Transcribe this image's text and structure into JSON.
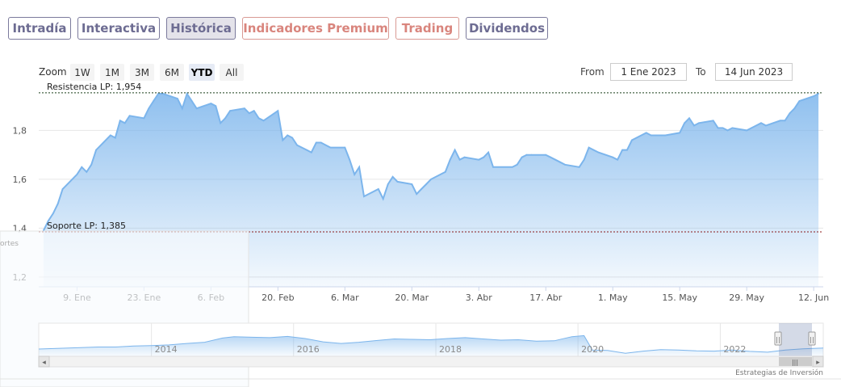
{
  "tabs": [
    {
      "label": "Intradía",
      "premium": false,
      "active": false
    },
    {
      "label": "Interactiva",
      "premium": false,
      "active": false
    },
    {
      "label": "Histórica",
      "premium": false,
      "active": true
    },
    {
      "label": "Indicadores Premium",
      "premium": true,
      "active": false
    },
    {
      "label": "Trading",
      "premium": true,
      "active": false
    },
    {
      "label": "Dividendos",
      "premium": false,
      "active": false
    }
  ],
  "zoom": {
    "label": "Zoom",
    "buttons": [
      "1W",
      "1M",
      "3M",
      "6M",
      "YTD",
      "All"
    ],
    "selected": "YTD"
  },
  "range": {
    "from_label": "From",
    "from_value": "1 Ene 2023",
    "to_label": "To",
    "to_value": "14 Jun 2023"
  },
  "colors": {
    "series": "#7cb5ec",
    "resistance": "#1a3d1a",
    "support": "#8b1a1a",
    "tab_border": "#7b7a9c",
    "tab_premium": "#d9857d"
  },
  "chart_data": {
    "type": "area",
    "title": "",
    "xlabel": "",
    "ylabel": "",
    "ylim": [
      1.16,
      1.97
    ],
    "yticks": [
      "1,2",
      "1,4",
      "1,6",
      "1,8"
    ],
    "xticks": [
      "9. Ene",
      "23. Ene",
      "6. Feb",
      "20. Feb",
      "6. Mar",
      "20. Mar",
      "3. Abr",
      "17. Abr",
      "1. May",
      "15. May",
      "29. May",
      "12. Jun"
    ],
    "x_range": [
      "2023-01-01",
      "2023-06-14"
    ],
    "grid": true,
    "series": [
      {
        "values": [
          [
            "2023-01-02",
            1.39
          ],
          [
            "2023-01-03",
            1.43
          ],
          [
            "2023-01-04",
            1.46
          ],
          [
            "2023-01-05",
            1.5
          ],
          [
            "2023-01-06",
            1.56
          ],
          [
            "2023-01-09",
            1.62
          ],
          [
            "2023-01-10",
            1.65
          ],
          [
            "2023-01-11",
            1.63
          ],
          [
            "2023-01-12",
            1.66
          ],
          [
            "2023-01-13",
            1.72
          ],
          [
            "2023-01-16",
            1.78
          ],
          [
            "2023-01-17",
            1.77
          ],
          [
            "2023-01-18",
            1.84
          ],
          [
            "2023-01-19",
            1.83
          ],
          [
            "2023-01-20",
            1.86
          ],
          [
            "2023-01-23",
            1.85
          ],
          [
            "2023-01-24",
            1.89
          ],
          [
            "2023-01-25",
            1.92
          ],
          [
            "2023-01-26",
            1.95
          ],
          [
            "2023-01-27",
            1.95
          ],
          [
            "2023-01-30",
            1.93
          ],
          [
            "2023-01-31",
            1.89
          ],
          [
            "2023-02-01",
            1.95
          ],
          [
            "2023-02-02",
            1.92
          ],
          [
            "2023-02-03",
            1.89
          ],
          [
            "2023-02-06",
            1.91
          ],
          [
            "2023-02-07",
            1.9
          ],
          [
            "2023-02-08",
            1.83
          ],
          [
            "2023-02-09",
            1.85
          ],
          [
            "2023-02-10",
            1.88
          ],
          [
            "2023-02-13",
            1.89
          ],
          [
            "2023-02-14",
            1.87
          ],
          [
            "2023-02-15",
            1.88
          ],
          [
            "2023-02-16",
            1.85
          ],
          [
            "2023-02-17",
            1.84
          ],
          [
            "2023-02-20",
            1.88
          ],
          [
            "2023-02-21",
            1.76
          ],
          [
            "2023-02-22",
            1.78
          ],
          [
            "2023-02-23",
            1.77
          ],
          [
            "2023-02-24",
            1.74
          ],
          [
            "2023-02-27",
            1.71
          ],
          [
            "2023-02-28",
            1.75
          ],
          [
            "2023-03-01",
            1.75
          ],
          [
            "2023-03-02",
            1.74
          ],
          [
            "2023-03-03",
            1.73
          ],
          [
            "2023-03-06",
            1.73
          ],
          [
            "2023-03-07",
            1.68
          ],
          [
            "2023-03-08",
            1.62
          ],
          [
            "2023-03-09",
            1.65
          ],
          [
            "2023-03-10",
            1.53
          ],
          [
            "2023-03-13",
            1.56
          ],
          [
            "2023-03-14",
            1.52
          ],
          [
            "2023-03-15",
            1.58
          ],
          [
            "2023-03-16",
            1.61
          ],
          [
            "2023-03-17",
            1.59
          ],
          [
            "2023-03-20",
            1.58
          ],
          [
            "2023-03-21",
            1.54
          ],
          [
            "2023-03-22",
            1.56
          ],
          [
            "2023-03-23",
            1.58
          ],
          [
            "2023-03-24",
            1.6
          ],
          [
            "2023-03-27",
            1.63
          ],
          [
            "2023-03-28",
            1.68
          ],
          [
            "2023-03-29",
            1.72
          ],
          [
            "2023-03-30",
            1.68
          ],
          [
            "2023-03-31",
            1.69
          ],
          [
            "2023-04-03",
            1.68
          ],
          [
            "2023-04-04",
            1.69
          ],
          [
            "2023-04-05",
            1.71
          ],
          [
            "2023-04-06",
            1.65
          ],
          [
            "2023-04-10",
            1.65
          ],
          [
            "2023-04-11",
            1.66
          ],
          [
            "2023-04-12",
            1.69
          ],
          [
            "2023-04-13",
            1.7
          ],
          [
            "2023-04-14",
            1.7
          ],
          [
            "2023-04-17",
            1.7
          ],
          [
            "2023-04-18",
            1.69
          ],
          [
            "2023-04-19",
            1.68
          ],
          [
            "2023-04-20",
            1.67
          ],
          [
            "2023-04-21",
            1.66
          ],
          [
            "2023-04-24",
            1.65
          ],
          [
            "2023-04-25",
            1.68
          ],
          [
            "2023-04-26",
            1.73
          ],
          [
            "2023-04-27",
            1.72
          ],
          [
            "2023-04-28",
            1.71
          ],
          [
            "2023-05-01",
            1.69
          ],
          [
            "2023-05-02",
            1.68
          ],
          [
            "2023-05-03",
            1.72
          ],
          [
            "2023-05-04",
            1.72
          ],
          [
            "2023-05-05",
            1.76
          ],
          [
            "2023-05-08",
            1.79
          ],
          [
            "2023-05-09",
            1.78
          ],
          [
            "2023-05-10",
            1.78
          ],
          [
            "2023-05-11",
            1.78
          ],
          [
            "2023-05-12",
            1.78
          ],
          [
            "2023-05-15",
            1.79
          ],
          [
            "2023-05-16",
            1.83
          ],
          [
            "2023-05-17",
            1.85
          ],
          [
            "2023-05-18",
            1.82
          ],
          [
            "2023-05-19",
            1.83
          ],
          [
            "2023-05-22",
            1.84
          ],
          [
            "2023-05-23",
            1.81
          ],
          [
            "2023-05-24",
            1.81
          ],
          [
            "2023-05-25",
            1.8
          ],
          [
            "2023-05-26",
            1.81
          ],
          [
            "2023-05-29",
            1.8
          ],
          [
            "2023-05-30",
            1.81
          ],
          [
            "2023-05-31",
            1.82
          ],
          [
            "2023-06-01",
            1.83
          ],
          [
            "2023-06-02",
            1.82
          ],
          [
            "2023-06-05",
            1.84
          ],
          [
            "2023-06-06",
            1.84
          ],
          [
            "2023-06-07",
            1.87
          ],
          [
            "2023-06-08",
            1.89
          ],
          [
            "2023-06-09",
            1.92
          ],
          [
            "2023-06-12",
            1.94
          ],
          [
            "2023-06-13",
            1.95
          ]
        ]
      }
    ],
    "lines": [
      {
        "label": "Resistencia LP: 1,954",
        "value": 1.954,
        "color": "resistance"
      },
      {
        "label": "Soporte LP: 1,385",
        "value": 1.385,
        "color": "support"
      }
    ],
    "navigator": {
      "years": [
        "2014",
        "2016",
        "2018",
        "2020",
        "2022"
      ],
      "year_dates": [
        "2014-01-01",
        "2016-01-01",
        "2018-01-01",
        "2020-01-01",
        "2022-01-01"
      ],
      "x_range": [
        "2012-06-01",
        "2023-06-14"
      ],
      "ylim": [
        0.6,
        2.2
      ],
      "values": [
        [
          "2012-06-01",
          0.95
        ],
        [
          "2012-09-01",
          0.98
        ],
        [
          "2013-01-01",
          1.02
        ],
        [
          "2013-04-01",
          1.05
        ],
        [
          "2013-07-01",
          1.05
        ],
        [
          "2013-10-01",
          1.1
        ],
        [
          "2014-01-01",
          1.12
        ],
        [
          "2014-04-01",
          1.15
        ],
        [
          "2014-07-01",
          1.22
        ],
        [
          "2014-10-01",
          1.28
        ],
        [
          "2015-01-01",
          1.48
        ],
        [
          "2015-03-01",
          1.55
        ],
        [
          "2015-06-01",
          1.52
        ],
        [
          "2015-09-01",
          1.5
        ],
        [
          "2015-12-01",
          1.56
        ],
        [
          "2016-03-01",
          1.46
        ],
        [
          "2016-06-01",
          1.3
        ],
        [
          "2016-09-01",
          1.22
        ],
        [
          "2016-12-01",
          1.28
        ],
        [
          "2017-03-01",
          1.36
        ],
        [
          "2017-06-01",
          1.44
        ],
        [
          "2017-09-01",
          1.42
        ],
        [
          "2017-12-01",
          1.4
        ],
        [
          "2018-03-01",
          1.46
        ],
        [
          "2018-06-01",
          1.5
        ],
        [
          "2018-09-01",
          1.44
        ],
        [
          "2018-12-01",
          1.38
        ],
        [
          "2019-03-01",
          1.4
        ],
        [
          "2019-06-01",
          1.33
        ],
        [
          "2019-09-01",
          1.35
        ],
        [
          "2019-12-01",
          1.55
        ],
        [
          "2020-02-01",
          1.6
        ],
        [
          "2020-03-15",
          0.9
        ],
        [
          "2020-06-01",
          0.88
        ],
        [
          "2020-09-01",
          0.75
        ],
        [
          "2020-12-01",
          0.85
        ],
        [
          "2021-03-01",
          0.92
        ],
        [
          "2021-06-01",
          0.9
        ],
        [
          "2021-09-01",
          0.86
        ],
        [
          "2021-12-01",
          0.85
        ],
        [
          "2022-03-01",
          0.9
        ],
        [
          "2022-06-01",
          0.84
        ],
        [
          "2022-09-01",
          0.8
        ],
        [
          "2022-12-01",
          0.9
        ],
        [
          "2023-03-01",
          0.96
        ],
        [
          "2023-06-14",
          1.0
        ]
      ]
    }
  },
  "ghost_text": "ortes",
  "credit": "Estrategias de Inversión",
  "scrollbar": {
    "left_arrow": "◂",
    "right_arrow": "▸",
    "grip": "|||",
    "handle_grip": "||"
  }
}
